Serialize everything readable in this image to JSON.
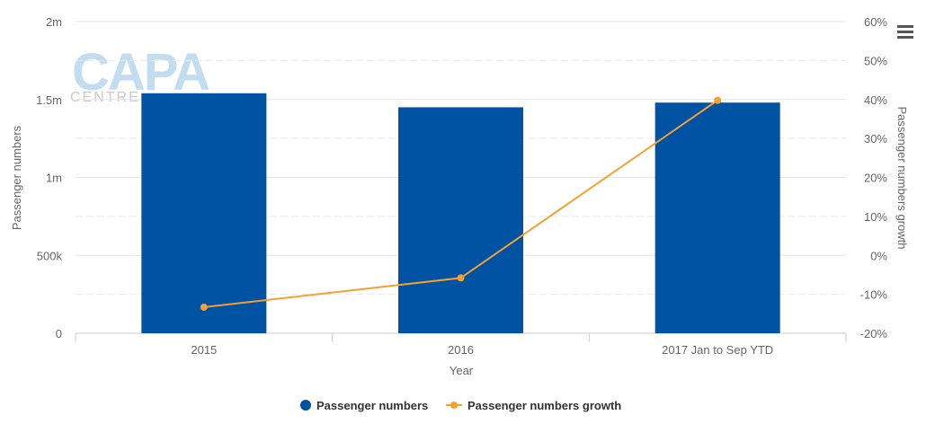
{
  "chart_data": {
    "type": "bar",
    "categories": [
      "2015",
      "2016",
      "2017 Jan to Sep YTD"
    ],
    "series": [
      {
        "name": "Passenger numbers",
        "type": "bar",
        "axis": "left",
        "color": "#0052a3",
        "values": [
          1540000,
          1450000,
          1480000
        ]
      },
      {
        "name": "Passenger numbers growth",
        "type": "line",
        "axis": "right",
        "color": "#f5a030",
        "values": [
          -13.3,
          -5.8,
          39.8
        ]
      }
    ],
    "xlabel": "Year",
    "ylabel": "Passenger numbers",
    "y2label": "Passenger numbers growth",
    "ylim": [
      0,
      2000000
    ],
    "y2lim": [
      -20,
      60
    ],
    "yticks": [
      "0",
      "500k",
      "1m",
      "1.5m",
      "2m"
    ],
    "y2ticks": [
      "-20%",
      "-10%",
      "0%",
      "10%",
      "20%",
      "30%",
      "40%",
      "50%",
      "60%"
    ],
    "grid": true,
    "legend_position": "bottom-center"
  },
  "watermark": {
    "main": "CAPA",
    "sub": "CENTRE"
  },
  "menu": {
    "icon": "hamburger-menu-icon"
  }
}
